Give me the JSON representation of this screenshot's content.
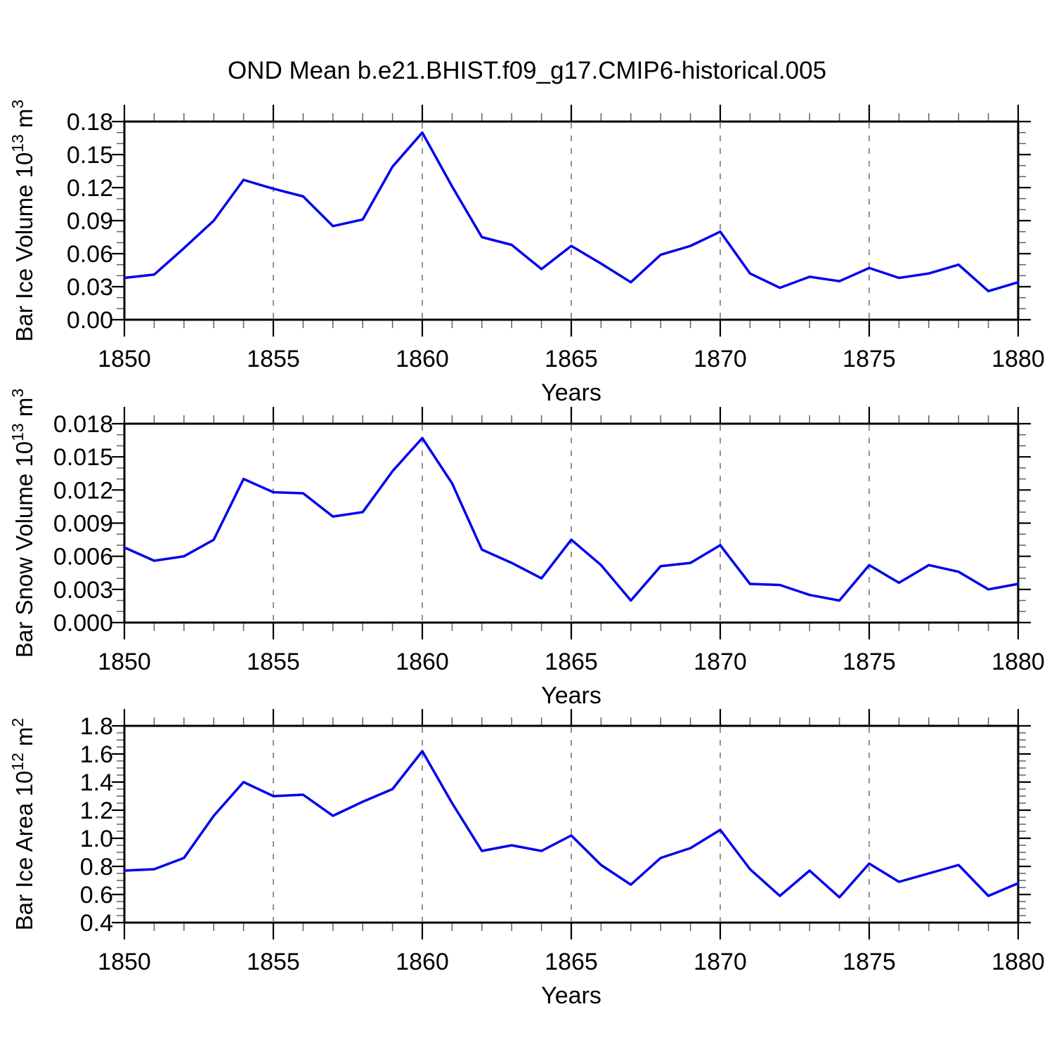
{
  "title": "OND Mean b.e21.BHIST.f09_g17.CMIP6-historical.005",
  "colors": {
    "line": "#0000ee",
    "frame": "#000000",
    "grid": "#919191",
    "minor_tick": "#606060",
    "text": "#000000",
    "background": "#ffffff"
  },
  "chart_data": [
    {
      "id": "ice-volume",
      "type": "line",
      "panel_title": "",
      "xlabel": "Years",
      "ylabel": "Bar Ice Volume 10^13 m^3",
      "ylabel_parts": [
        {
          "text": "Bar Ice Volume 10"
        },
        {
          "text": "13",
          "super": true
        },
        {
          "text": " m"
        },
        {
          "text": "3",
          "super": true
        }
      ],
      "xlim": [
        1850,
        1880
      ],
      "ylim": [
        0,
        0.18
      ],
      "xtick_values": [
        1850,
        1855,
        1860,
        1865,
        1870,
        1875,
        1880
      ],
      "xtick_labels": [
        "1850",
        "1855",
        "1860",
        "1865",
        "1870",
        "1875",
        "1880"
      ],
      "xminor_step": 1,
      "ytick_values": [
        0.0,
        0.03,
        0.06,
        0.09,
        0.12,
        0.15,
        0.18
      ],
      "ytick_labels": [
        "0.00",
        "0.03",
        "0.06",
        "0.09",
        "0.12",
        "0.15",
        "0.18"
      ],
      "yminor_step": 0.01,
      "grid_x_values": [
        1855,
        1860,
        1865,
        1870,
        1875
      ],
      "legend": "none",
      "line_color": "#0000ee",
      "x": [
        1850,
        1851,
        1852,
        1853,
        1854,
        1855,
        1856,
        1857,
        1858,
        1859,
        1860,
        1861,
        1862,
        1863,
        1864,
        1865,
        1866,
        1867,
        1868,
        1869,
        1870,
        1871,
        1872,
        1873,
        1874,
        1875,
        1876,
        1877,
        1878,
        1879,
        1880
      ],
      "series": [
        {
          "name": "Bar Ice Volume",
          "values": [
            0.038,
            0.041,
            0.065,
            0.09,
            0.127,
            0.119,
            0.112,
            0.085,
            0.091,
            0.139,
            0.17,
            0.121,
            0.075,
            0.068,
            0.046,
            0.067,
            0.051,
            0.034,
            0.059,
            0.067,
            0.08,
            0.042,
            0.029,
            0.039,
            0.035,
            0.047,
            0.038,
            0.042,
            0.05,
            0.026,
            0.034
          ]
        }
      ]
    },
    {
      "id": "snow-volume",
      "type": "line",
      "panel_title": "",
      "xlabel": "Years",
      "ylabel": "Bar Snow Volume 10^13 m^3",
      "ylabel_parts": [
        {
          "text": "Bar Snow Volume 10"
        },
        {
          "text": "13",
          "super": true
        },
        {
          "text": " m"
        },
        {
          "text": "3",
          "super": true
        }
      ],
      "xlim": [
        1850,
        1880
      ],
      "ylim": [
        0,
        0.018
      ],
      "xtick_values": [
        1850,
        1855,
        1860,
        1865,
        1870,
        1875,
        1880
      ],
      "xtick_labels": [
        "1850",
        "1855",
        "1860",
        "1865",
        "1870",
        "1875",
        "1880"
      ],
      "xminor_step": 1,
      "ytick_values": [
        0.0,
        0.003,
        0.006,
        0.009,
        0.012,
        0.015,
        0.018
      ],
      "ytick_labels": [
        "0.000",
        "0.003",
        "0.006",
        "0.009",
        "0.012",
        "0.015",
        "0.018"
      ],
      "yminor_step": 0.001,
      "grid_x_values": [
        1855,
        1860,
        1865,
        1870,
        1875
      ],
      "legend": "none",
      "line_color": "#0000ee",
      "x": [
        1850,
        1851,
        1852,
        1853,
        1854,
        1855,
        1856,
        1857,
        1858,
        1859,
        1860,
        1861,
        1862,
        1863,
        1864,
        1865,
        1866,
        1867,
        1868,
        1869,
        1870,
        1871,
        1872,
        1873,
        1874,
        1875,
        1876,
        1877,
        1878,
        1879,
        1880
      ],
      "series": [
        {
          "name": "Bar Snow Volume",
          "values": [
            0.0068,
            0.0056,
            0.006,
            0.0075,
            0.013,
            0.0118,
            0.0117,
            0.0096,
            0.01,
            0.0137,
            0.0167,
            0.0126,
            0.0066,
            0.0054,
            0.004,
            0.0075,
            0.0052,
            0.002,
            0.0051,
            0.0054,
            0.007,
            0.0035,
            0.0034,
            0.0025,
            0.002,
            0.0052,
            0.0036,
            0.0052,
            0.0046,
            0.003,
            0.0035
          ]
        }
      ]
    },
    {
      "id": "ice-area",
      "type": "line",
      "panel_title": "",
      "xlabel": "Years",
      "ylabel": "Bar Ice Area 10^12 m^2",
      "ylabel_parts": [
        {
          "text": "Bar Ice Area 10"
        },
        {
          "text": "12",
          "super": true
        },
        {
          "text": " m"
        },
        {
          "text": "2",
          "super": true
        }
      ],
      "xlim": [
        1850,
        1880
      ],
      "ylim": [
        0.4,
        1.8
      ],
      "xtick_values": [
        1850,
        1855,
        1860,
        1865,
        1870,
        1875,
        1880
      ],
      "xtick_labels": [
        "1850",
        "1855",
        "1860",
        "1865",
        "1870",
        "1875",
        "1880"
      ],
      "xminor_step": 1,
      "ytick_values": [
        0.4,
        0.6,
        0.8,
        1.0,
        1.2,
        1.4,
        1.6,
        1.8
      ],
      "ytick_labels": [
        "0.4",
        "0.6",
        "0.8",
        "1.0",
        "1.2",
        "1.4",
        "1.6",
        "1.8"
      ],
      "yminor_step": 0.05,
      "grid_x_values": [
        1855,
        1860,
        1865,
        1870,
        1875
      ],
      "legend": "none",
      "line_color": "#0000ee",
      "x": [
        1850,
        1851,
        1852,
        1853,
        1854,
        1855,
        1856,
        1857,
        1858,
        1859,
        1860,
        1861,
        1862,
        1863,
        1864,
        1865,
        1866,
        1867,
        1868,
        1869,
        1870,
        1871,
        1872,
        1873,
        1874,
        1875,
        1876,
        1877,
        1878,
        1879,
        1880
      ],
      "series": [
        {
          "name": "Bar Ice Area",
          "values": [
            0.77,
            0.78,
            0.86,
            1.16,
            1.4,
            1.3,
            1.31,
            1.16,
            1.26,
            1.35,
            1.62,
            1.25,
            0.91,
            0.95,
            0.91,
            1.02,
            0.81,
            0.67,
            0.86,
            0.93,
            1.06,
            0.78,
            0.59,
            0.77,
            0.58,
            0.82,
            0.69,
            0.75,
            0.81,
            0.59,
            0.68
          ]
        }
      ]
    }
  ]
}
